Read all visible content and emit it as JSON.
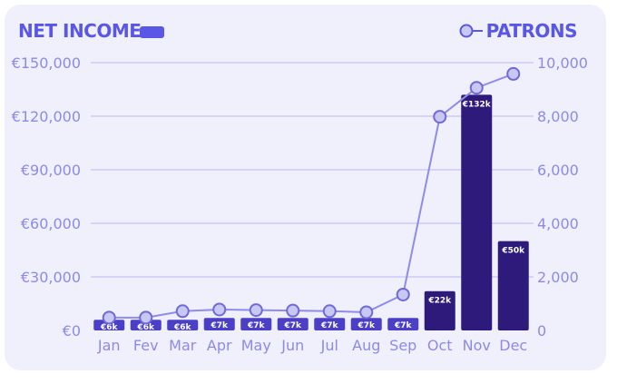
{
  "colors": {
    "card_bg": "#f0f0fc",
    "accent": "#5b57e6",
    "tick_text": "#8c8ae8",
    "grid": "#cccbf3",
    "bar_low": "#4b3fc8",
    "bar_high": "#2e1a7a",
    "bar_label": "#ffffff",
    "line": "#8e8bea",
    "marker_fill": "#c9c8f4",
    "marker_stroke": "#6e6ad8"
  },
  "chart_data": {
    "type": "bar",
    "title": "",
    "legend": [
      {
        "label": "NET INCOME",
        "marker": "bar"
      },
      {
        "label": "PATRONS",
        "marker": "line-circle"
      }
    ],
    "legend_placement": "top",
    "categories": [
      "Jan",
      "Fev",
      "Mar",
      "Apr",
      "May",
      "Jun",
      "Jul",
      "Aug",
      "Sep",
      "Oct",
      "Nov",
      "Dec"
    ],
    "series": [
      {
        "name": "NET INCOME",
        "type": "bar",
        "axis": "left",
        "values": [
          6000,
          6000,
          6000,
          7000,
          7000,
          7000,
          7000,
          7000,
          7000,
          22000,
          132000,
          50000
        ],
        "labels": [
          "€6k",
          "€6k",
          "€6k",
          "€7k",
          "€7k",
          "€7k",
          "€7k",
          "€7k",
          "€7k",
          "€22k",
          "€132k",
          "€50k"
        ]
      },
      {
        "name": "PATRONS",
        "type": "line",
        "axis": "right",
        "values": [
          480,
          480,
          720,
          780,
          760,
          740,
          720,
          680,
          1340,
          7980,
          9060,
          9580
        ]
      }
    ],
    "y_left": {
      "lim": [
        0,
        150000
      ],
      "ticks": [
        0,
        30000,
        60000,
        90000,
        120000,
        150000
      ],
      "tick_labels": [
        "€0",
        "€30,000",
        "€60,000",
        "€90,000",
        "€120,000",
        "€150,000"
      ]
    },
    "y_right": {
      "lim": [
        0,
        10000
      ],
      "ticks": [
        0,
        2000,
        4000,
        6000,
        8000,
        10000
      ],
      "tick_labels": [
        "0",
        "2,000",
        "4,000",
        "6,000",
        "8,000",
        "10,000"
      ]
    },
    "grid": true
  }
}
